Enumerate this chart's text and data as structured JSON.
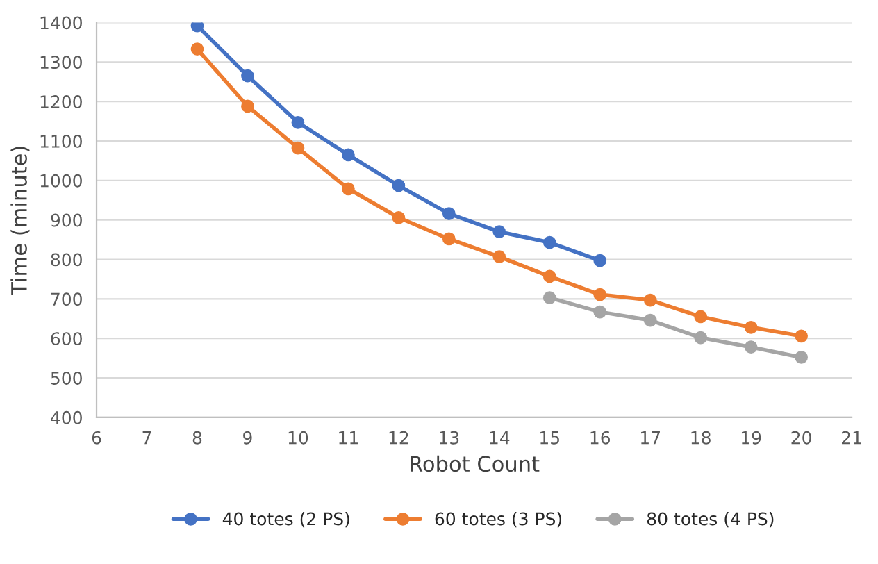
{
  "chart_data": {
    "type": "line",
    "xlabel": "Robot Count",
    "ylabel": "Time (minute)",
    "xlim": [
      6,
      21
    ],
    "xticks": [
      6,
      7,
      8,
      9,
      10,
      11,
      12,
      13,
      14,
      15,
      16,
      17,
      18,
      19,
      20,
      21
    ],
    "ylim": [
      400,
      1400
    ],
    "yticks": [
      400,
      500,
      600,
      700,
      800,
      900,
      1000,
      1100,
      1200,
      1300,
      1400
    ],
    "grid": "y",
    "legend": "bottom",
    "marker": "circle",
    "line_style": "solid",
    "series": [
      {
        "name": "40 totes (2 PS)",
        "color": "#4472c4",
        "x": [
          8,
          9,
          10,
          11,
          12,
          13,
          14,
          15,
          16
        ],
        "values": [
          1392,
          1265,
          1147,
          1065,
          987,
          916,
          870,
          843,
          797
        ]
      },
      {
        "name": "60 totes (3 PS)",
        "color": "#ed7d31",
        "x": [
          8,
          9,
          10,
          11,
          12,
          13,
          14,
          15,
          16,
          17,
          18,
          19,
          20
        ],
        "values": [
          1333,
          1188,
          1082,
          979,
          906,
          852,
          807,
          757,
          711,
          697,
          655,
          628,
          606
        ]
      },
      {
        "name": "80 totes (4 PS)",
        "color": "#a5a5a5",
        "x": [
          15,
          16,
          17,
          18,
          19,
          20
        ],
        "values": [
          703,
          667,
          646,
          602,
          578,
          552
        ]
      }
    ]
  }
}
